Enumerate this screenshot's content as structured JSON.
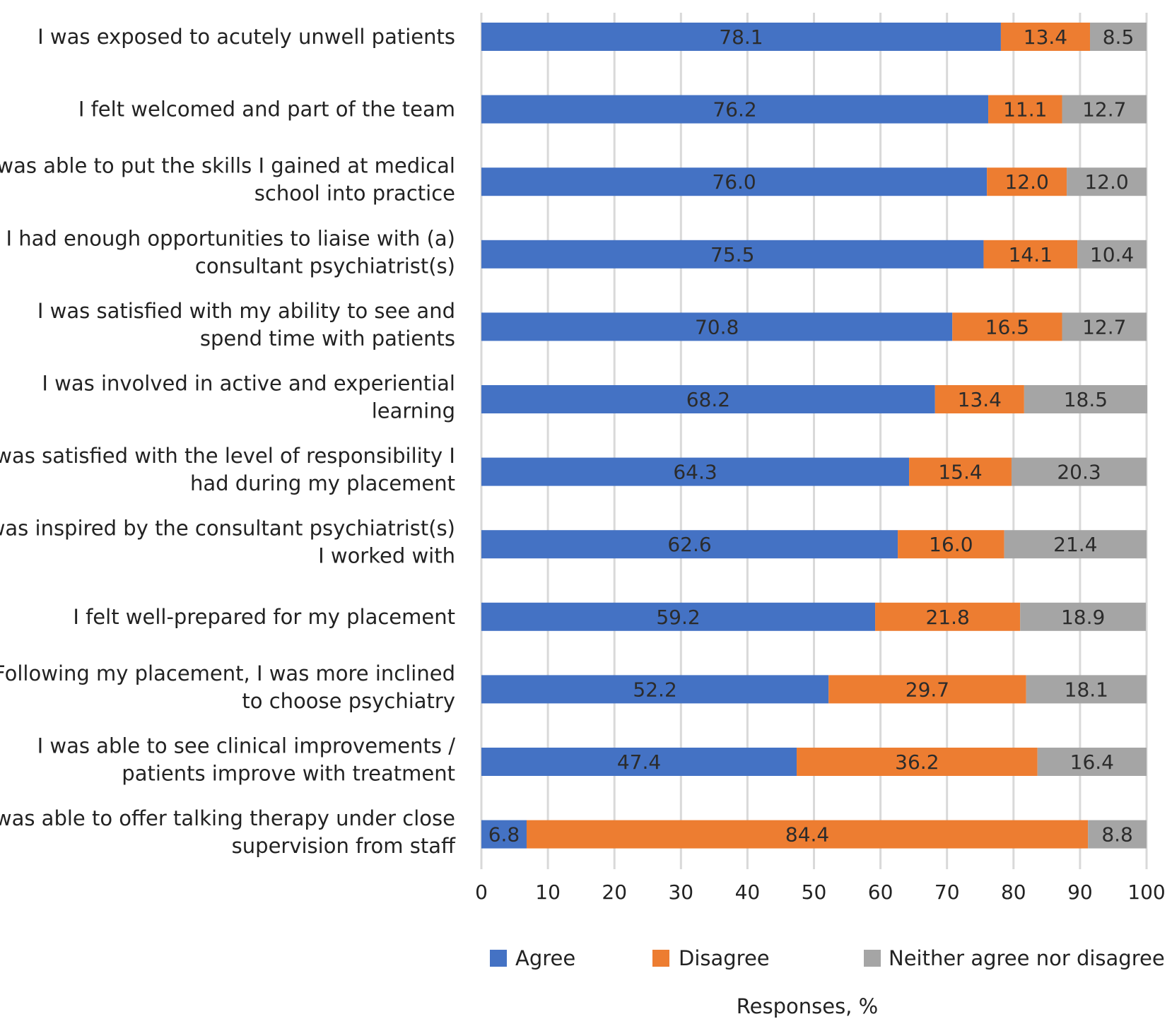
{
  "chart_data": {
    "type": "bar",
    "orientation": "horizontal",
    "stacked": true,
    "title": "",
    "xlabel": "Responses, %",
    "ylabel": "",
    "xlim": [
      0,
      100
    ],
    "xticks": [
      "0",
      "10",
      "20",
      "30",
      "40",
      "50",
      "60",
      "70",
      "80",
      "90",
      "100"
    ],
    "grid": true,
    "legend_position": "bottom",
    "categories": [
      [
        "I was exposed to acutely unwell patients"
      ],
      [
        "I felt welcomed and part of the team"
      ],
      [
        "I was able to put the skills I gained at medical",
        "school into practice"
      ],
      [
        "I had enough opportunities to liaise with (a)",
        "consultant psychiatrist(s)"
      ],
      [
        "I was satisfied with my ability to see and",
        "spend time with patients"
      ],
      [
        "I was involved in active and experiential",
        "learning"
      ],
      [
        "I was satisfied with the level of responsibility I",
        "had during my placement"
      ],
      [
        "I was inspired by the consultant psychiatrist(s)",
        "I worked with"
      ],
      [
        "I felt well-prepared for my placement"
      ],
      [
        "Following my placement, I was more inclined",
        "to choose psychiatry"
      ],
      [
        "I was able to see clinical improvements /",
        "patients improve with treatment"
      ],
      [
        "I was able to offer talking therapy under close",
        "supervision from staff"
      ]
    ],
    "series": [
      {
        "name": "Agree",
        "color": "#4472c4",
        "values": [
          78.1,
          76.2,
          76.0,
          75.5,
          70.8,
          68.2,
          64.3,
          62.6,
          59.2,
          52.2,
          47.4,
          6.8
        ],
        "labels": [
          "78.1",
          "76.2",
          "76.0",
          "75.5",
          "70.8",
          "68.2",
          "64.3",
          "62.6",
          "59.2",
          "52.2",
          "47.4",
          "6.8"
        ]
      },
      {
        "name": "Disagree",
        "color": "#ed7d31",
        "values": [
          13.4,
          11.1,
          12.0,
          14.1,
          16.5,
          13.4,
          15.4,
          16.0,
          21.8,
          29.7,
          36.2,
          84.4
        ],
        "labels": [
          "13.4",
          "11.1",
          "12.0",
          "14.1",
          "16.5",
          "13.4",
          "15.4",
          "16.0",
          "21.8",
          "29.7",
          "36.2",
          "84.4"
        ]
      },
      {
        "name": "Neither agree nor disagree",
        "color": "#a5a5a5",
        "values": [
          8.5,
          12.7,
          12.0,
          10.4,
          12.7,
          18.5,
          20.3,
          21.4,
          18.9,
          18.1,
          16.4,
          8.8
        ],
        "labels": [
          "8.5",
          "12.7",
          "12.0",
          "10.4",
          "12.7",
          "18.5",
          "20.3",
          "21.4",
          "18.9",
          "18.1",
          "16.4",
          "8.8"
        ]
      }
    ]
  }
}
